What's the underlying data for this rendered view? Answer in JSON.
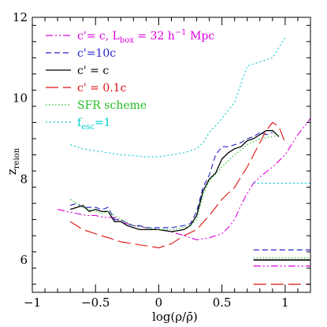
{
  "chart_data": {
    "type": "line",
    "xlabel": "log(ρ/ρ̄)",
    "ylabel_main": "z",
    "ylabel_sub": "reion",
    "xlim": [
      -1,
      1.2
    ],
    "ylim": [
      5.2,
      12
    ],
    "xticks": [
      -1,
      -0.5,
      0,
      0.5,
      1
    ],
    "xtick_labels": [
      "−1",
      "−0.5",
      "0",
      "0.5",
      "1"
    ],
    "yticks": [
      6,
      8,
      10,
      12
    ],
    "ytick_labels": [
      "6",
      "8",
      "10",
      "12"
    ],
    "grid": false,
    "legend_position": "top-left",
    "series": [
      {
        "name": "c'= c, L_box = 32 h⁻¹ Mpc",
        "legend": {
          "main": "c'= c, L",
          "sub": "box",
          "tail": " = 32 h",
          "sup": "−1",
          "end": " Mpc"
        },
        "color": "#dd00dd",
        "style": "dashdotdot",
        "x": [
          -0.8,
          -0.72,
          -0.65,
          -0.57,
          -0.5,
          -0.43,
          -0.35,
          -0.3,
          -0.25,
          -0.2,
          -0.1,
          0,
          0.1,
          0.2,
          0.3,
          0.4,
          0.5,
          0.55,
          0.6,
          0.65,
          0.7,
          0.75,
          0.8,
          0.9,
          1.0,
          1.1,
          1.2
        ],
        "y": [
          7.25,
          7.2,
          7.15,
          7.1,
          7.1,
          7.05,
          7.05,
          6.95,
          6.9,
          6.85,
          6.8,
          6.75,
          6.7,
          6.6,
          6.5,
          6.55,
          6.65,
          6.8,
          7.0,
          7.35,
          7.65,
          7.9,
          8.05,
          8.3,
          8.6,
          9.1,
          9.5
        ],
        "level": 5.85,
        "level_x": [
          0.75,
          1.2
        ]
      },
      {
        "name": "c'=10c",
        "legend": {
          "main": "c'=10c"
        },
        "color": "#2222cc",
        "style": "dashed",
        "x": [
          -0.7,
          -0.65,
          -0.6,
          -0.55,
          -0.5,
          -0.45,
          -0.4,
          -0.35,
          -0.3,
          -0.25,
          -0.2,
          -0.15,
          -0.1,
          0,
          0.1,
          0.2,
          0.25,
          0.3,
          0.35,
          0.4,
          0.45,
          0.5,
          0.55,
          0.6,
          0.65,
          0.7,
          0.75,
          0.8,
          0.85,
          0.9
        ],
        "y": [
          7.35,
          7.4,
          7.3,
          7.3,
          7.3,
          7.25,
          7.3,
          7.0,
          7.0,
          6.9,
          6.85,
          6.85,
          6.8,
          6.8,
          6.8,
          6.85,
          6.9,
          7.2,
          7.8,
          8.1,
          8.6,
          8.8,
          8.8,
          8.85,
          8.9,
          9.0,
          9.05,
          9.15,
          9.1,
          9.15
        ],
        "level": 6.25,
        "level_x": [
          0.75,
          1.2
        ]
      },
      {
        "name": "c' = c",
        "legend": {
          "main": "c' = c"
        },
        "color": "#000000",
        "style": "solid",
        "x": [
          -0.7,
          -0.65,
          -0.6,
          -0.55,
          -0.5,
          -0.45,
          -0.4,
          -0.35,
          -0.3,
          -0.25,
          -0.2,
          -0.15,
          -0.1,
          0,
          0.1,
          0.2,
          0.25,
          0.3,
          0.35,
          0.4,
          0.45,
          0.5,
          0.55,
          0.6,
          0.65,
          0.7,
          0.75,
          0.8,
          0.85,
          0.9,
          0.95
        ],
        "y": [
          7.25,
          7.3,
          7.35,
          7.2,
          7.25,
          7.2,
          7.2,
          6.95,
          6.95,
          6.85,
          6.8,
          6.75,
          6.75,
          6.75,
          6.7,
          6.75,
          6.85,
          7.1,
          7.7,
          8.0,
          8.15,
          8.5,
          8.65,
          8.75,
          8.8,
          8.95,
          9.0,
          9.1,
          9.2,
          9.2,
          9.05
        ],
        "level": 6.0,
        "level_x": [
          0.75,
          1.2
        ]
      },
      {
        "name": "c' = 0.1c",
        "legend": {
          "main": "c' = 0.1c"
        },
        "color": "#dd1111",
        "style": "longdash",
        "x": [
          -0.7,
          -0.6,
          -0.5,
          -0.4,
          -0.3,
          -0.2,
          -0.1,
          0,
          0.1,
          0.2,
          0.3,
          0.4,
          0.5,
          0.6,
          0.65,
          0.7,
          0.75,
          0.8,
          0.85,
          0.9,
          0.95,
          1.0
        ],
        "y": [
          6.95,
          6.75,
          6.65,
          6.55,
          6.45,
          6.4,
          6.35,
          6.3,
          6.4,
          6.6,
          6.75,
          7.1,
          7.5,
          7.8,
          8.05,
          8.3,
          8.6,
          8.9,
          9.2,
          9.4,
          9.3,
          8.9
        ],
        "level": 5.4,
        "level_x": [
          0.75,
          1.2
        ]
      },
      {
        "name": "SFR scheme",
        "legend": {
          "main": "SFR scheme"
        },
        "color": "#22bb22",
        "style": "dotted",
        "x": [
          -0.7,
          -0.6,
          -0.5,
          -0.45,
          -0.4,
          -0.3,
          -0.2,
          -0.1,
          0,
          0.1,
          0.2,
          0.25,
          0.3,
          0.35,
          0.4,
          0.5,
          0.6,
          0.7,
          0.8,
          0.9,
          0.95
        ],
        "y": [
          7.5,
          7.3,
          7.2,
          7.15,
          7.2,
          7.0,
          6.85,
          6.8,
          6.75,
          6.75,
          6.8,
          6.85,
          7.0,
          7.6,
          7.95,
          8.3,
          8.6,
          8.85,
          9.0,
          9.05,
          9.1
        ],
        "level": 6.05,
        "level_x": [
          0.75,
          1.2
        ]
      },
      {
        "name": "f_esc = 1",
        "legend": {
          "main": "f",
          "sub": "esc",
          "tail": "=1"
        },
        "color": "#00cccc",
        "style": "dotdash",
        "x": [
          -0.7,
          -0.6,
          -0.5,
          -0.4,
          -0.3,
          -0.2,
          -0.1,
          0,
          0.1,
          0.2,
          0.3,
          0.35,
          0.4,
          0.5,
          0.6,
          0.7,
          0.8,
          0.9,
          1.0
        ],
        "y": [
          8.85,
          8.75,
          8.7,
          8.65,
          8.6,
          8.58,
          8.55,
          8.55,
          8.6,
          8.65,
          8.75,
          8.9,
          9.15,
          9.5,
          9.9,
          10.8,
          10.9,
          11.0,
          11.5
        ],
        "level": 7.9,
        "level_x": [
          0.75,
          1.2
        ]
      }
    ]
  }
}
